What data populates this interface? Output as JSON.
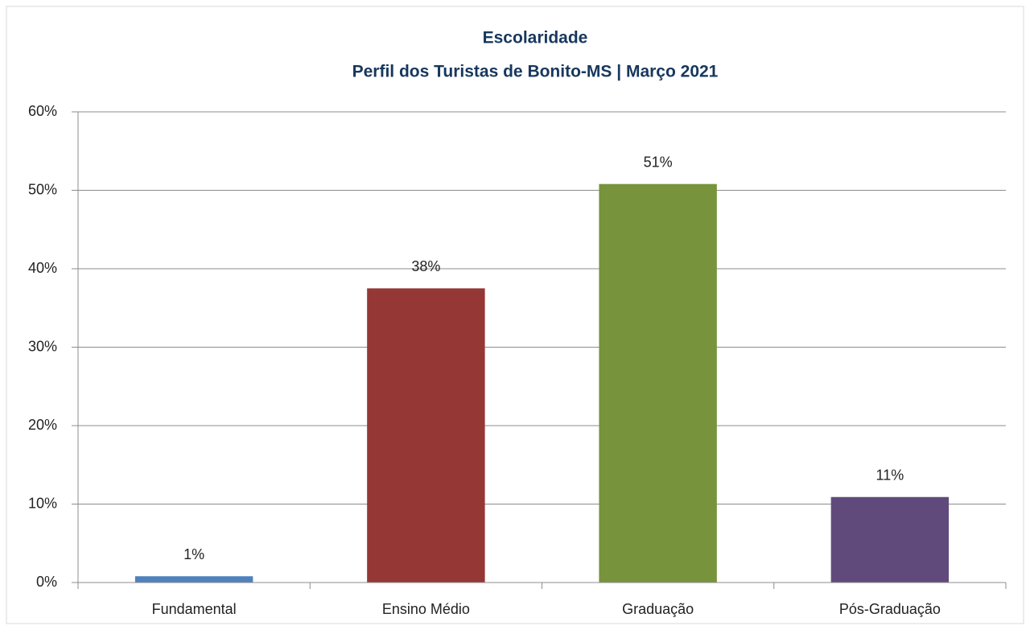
{
  "chart_data": {
    "type": "bar",
    "title": "Escolaridade",
    "subtitle": "Perfil dos Turistas de Bonito-MS | Março 2021",
    "categories": [
      "Fundamental",
      "Ensino Médio",
      "Graduação",
      "Pós-Graduação"
    ],
    "values": [
      0.8,
      37.5,
      50.8,
      10.9
    ],
    "value_labels": [
      "1%",
      "38%",
      "51%",
      "11%"
    ],
    "colors": [
      "#4f81bd",
      "#953735",
      "#77933c",
      "#604a7b"
    ],
    "ylim": [
      0,
      60
    ],
    "yticks": [
      {
        "value": 0,
        "label": "0%"
      },
      {
        "value": 10,
        "label": "10%"
      },
      {
        "value": 20,
        "label": "20%"
      },
      {
        "value": 30,
        "label": "30%"
      },
      {
        "value": 40,
        "label": "40%"
      },
      {
        "value": 50,
        "label": "50%"
      },
      {
        "value": 60,
        "label": "60%"
      }
    ],
    "grid": true
  }
}
